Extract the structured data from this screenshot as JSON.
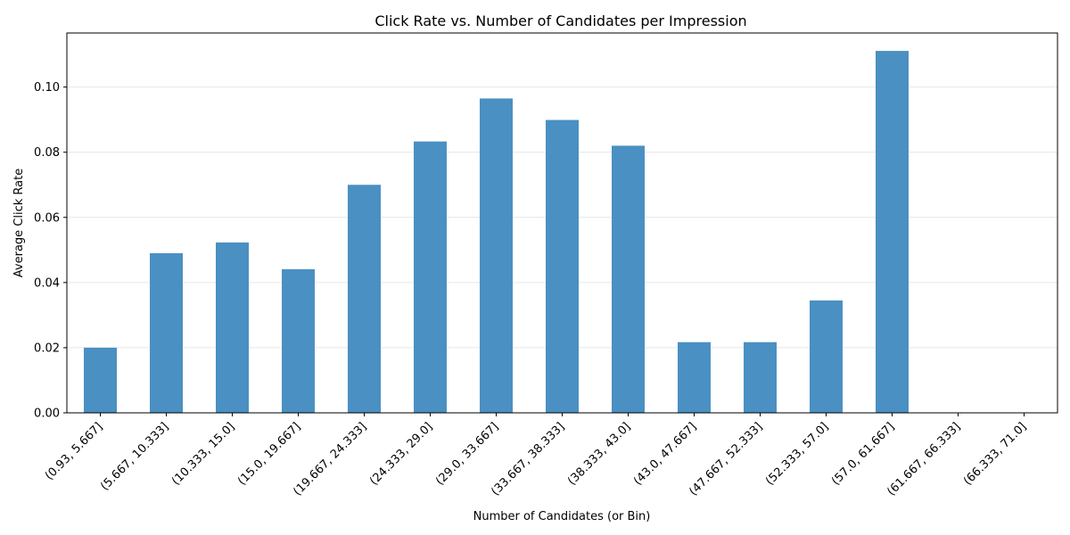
{
  "chart_data": {
    "type": "bar",
    "title": "Click Rate vs. Number of Candidates per Impression",
    "xlabel": "Number of Candidates (or Bin)",
    "ylabel": "Average Click Rate",
    "categories": [
      "(0.93, 5.667]",
      "(5.667, 10.333]",
      "(10.333, 15.0]",
      "(15.0, 19.667]",
      "(19.667, 24.333]",
      "(24.333, 29.0]",
      "(29.0, 33.667]",
      "(33.667, 38.333]",
      "(38.333, 43.0]",
      "(43.0, 47.667]",
      "(47.667, 52.333]",
      "(52.333, 57.0]",
      "(57.0, 61.667]",
      "(61.667, 66.333]",
      "(66.333, 71.0]"
    ],
    "values": [
      0.02,
      0.049,
      0.0523,
      0.0441,
      0.07,
      0.0833,
      0.0965,
      0.0899,
      0.082,
      0.0217,
      0.0217,
      0.0345,
      0.1111,
      0.0,
      0.0
    ],
    "ylim": [
      0,
      0.1166
    ],
    "yticks": [
      "0.00",
      "0.02",
      "0.04",
      "0.06",
      "0.08",
      "0.10"
    ],
    "grid": "horizontal",
    "bar_color": "#4a90c2",
    "legend": "none"
  }
}
